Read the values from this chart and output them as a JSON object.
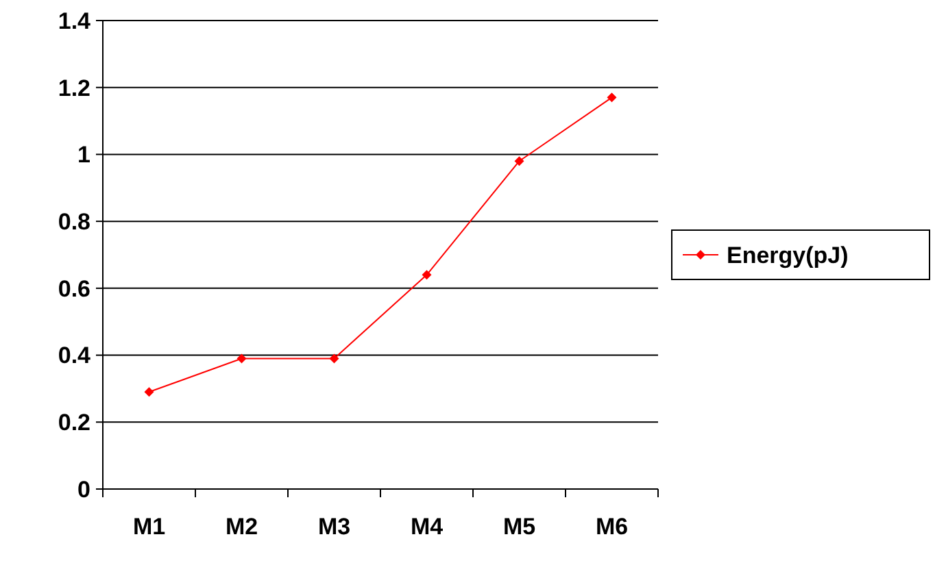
{
  "chart_data": {
    "type": "line",
    "categories": [
      "M1",
      "M2",
      "M3",
      "M4",
      "M5",
      "M6"
    ],
    "series": [
      {
        "name": "Energy(pJ)",
        "color": "#ff0000",
        "values": [
          0.29,
          0.39,
          0.39,
          0.64,
          0.98,
          1.17
        ]
      }
    ],
    "ylim": [
      0,
      1.4
    ],
    "yticks": [
      0,
      0.2,
      0.4,
      0.6,
      0.8,
      1,
      1.2,
      1.4
    ],
    "grid": "y",
    "legend": "right",
    "marker": "diamond",
    "line_style": "solid"
  }
}
